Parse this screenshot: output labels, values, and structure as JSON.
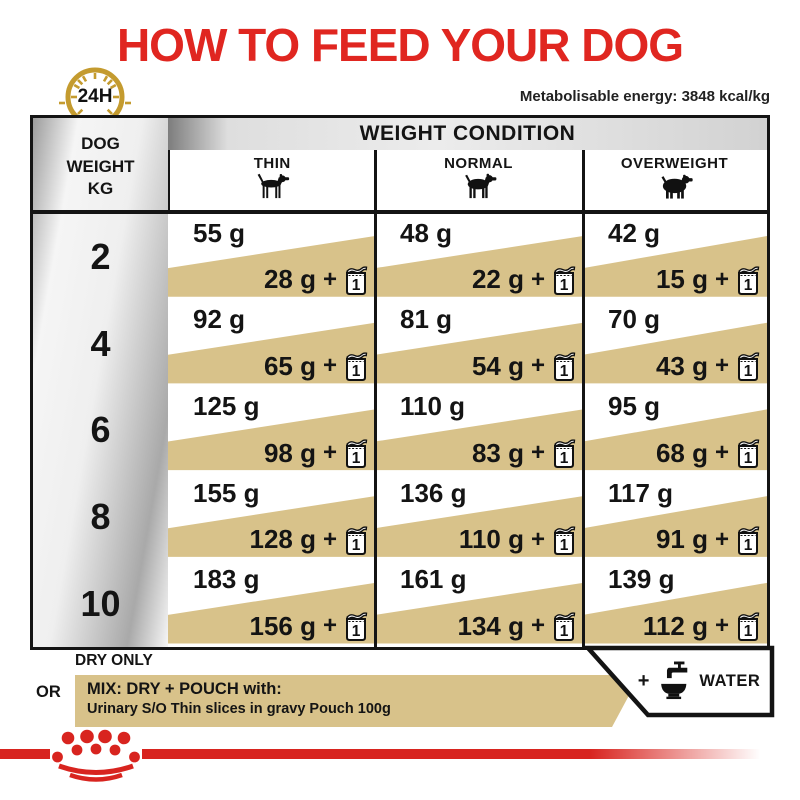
{
  "title": "HOW TO FEED YOUR DOG",
  "clock": {
    "label": "24H"
  },
  "energy_note": "Metabolisable energy: 3848 kcal/kg",
  "table": {
    "weight_header": "DOG\nWEIGHT\nKG",
    "condition_header": "WEIGHT CONDITION",
    "conditions": [
      "THIN",
      "NORMAL",
      "OVERWEIGHT"
    ],
    "plus_sign": "+",
    "pouch_count": "1",
    "rows": [
      {
        "weight": "2",
        "cells": [
          {
            "dry": "55 g",
            "mix": "28 g"
          },
          {
            "dry": "48 g",
            "mix": "22 g"
          },
          {
            "dry": "42 g",
            "mix": "15 g"
          }
        ]
      },
      {
        "weight": "4",
        "cells": [
          {
            "dry": "92 g",
            "mix": "65 g"
          },
          {
            "dry": "81 g",
            "mix": "54 g"
          },
          {
            "dry": "70 g",
            "mix": "43 g"
          }
        ]
      },
      {
        "weight": "6",
        "cells": [
          {
            "dry": "125 g",
            "mix": "98 g"
          },
          {
            "dry": "110 g",
            "mix": "83 g"
          },
          {
            "dry": "95 g",
            "mix": "68 g"
          }
        ]
      },
      {
        "weight": "8",
        "cells": [
          {
            "dry": "155 g",
            "mix": "128 g"
          },
          {
            "dry": "136 g",
            "mix": "110 g"
          },
          {
            "dry": "117 g",
            "mix": "91 g"
          }
        ]
      },
      {
        "weight": "10",
        "cells": [
          {
            "dry": "183 g",
            "mix": "156 g"
          },
          {
            "dry": "161 g",
            "mix": "134 g"
          },
          {
            "dry": "139 g",
            "mix": "112 g"
          }
        ]
      }
    ]
  },
  "footer": {
    "dry_only_label": "DRY ONLY",
    "or_label": "OR",
    "mix_label": "MIX: DRY + POUCH with:",
    "mix_product": "Urinary S/O Thin slices in gravy Pouch 100g",
    "water_plus": "+",
    "water_label": "WATER"
  },
  "colors": {
    "brand_red": "#d8241f",
    "title_red": "#e02620",
    "tan": "#d8c28a",
    "gold": "#c49b2f",
    "ink": "#141414"
  }
}
